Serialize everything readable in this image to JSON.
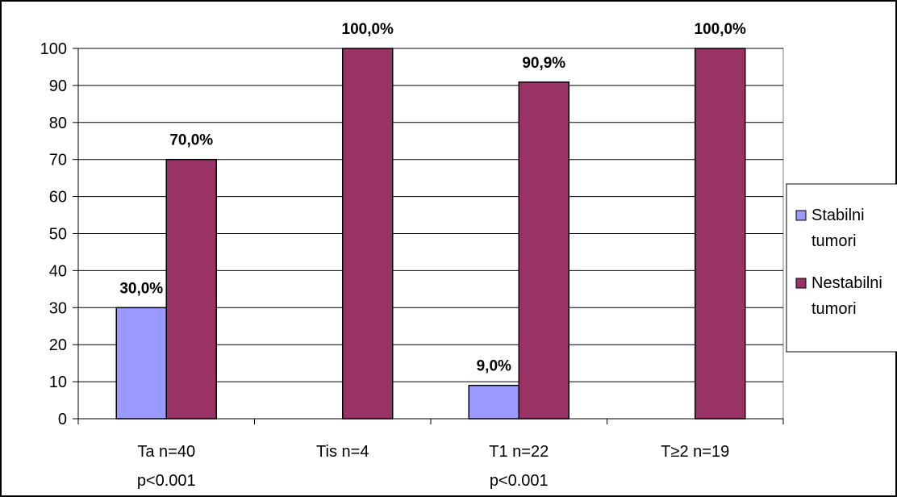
{
  "chart_data": {
    "type": "bar",
    "categories": [
      [
        "Ta n=40",
        "p<0.001"
      ],
      [
        "Tis n=4"
      ],
      [
        "T1 n=22",
        "p<0.001"
      ],
      [
        "T≥2 n=19"
      ]
    ],
    "series": [
      {
        "name": [
          "Stabilni",
          "tumori"
        ],
        "color": "#9999ff",
        "values": [
          30.0,
          0,
          9.0,
          0
        ],
        "labels": [
          "30,0%",
          "",
          "9,0%",
          ""
        ]
      },
      {
        "name": [
          "Nestabilni",
          "tumori"
        ],
        "color": "#993366",
        "values": [
          70.0,
          100.0,
          90.9,
          100.0
        ],
        "labels": [
          "70,0%",
          "100,0%",
          "90,9%",
          "100,0%"
        ]
      }
    ],
    "yticks": [
      "0",
      "10",
      "20",
      "30",
      "40",
      "50",
      "60",
      "70",
      "80",
      "90",
      "100"
    ],
    "ylim": [
      0,
      100
    ],
    "grid": true,
    "legend_position": "right"
  }
}
